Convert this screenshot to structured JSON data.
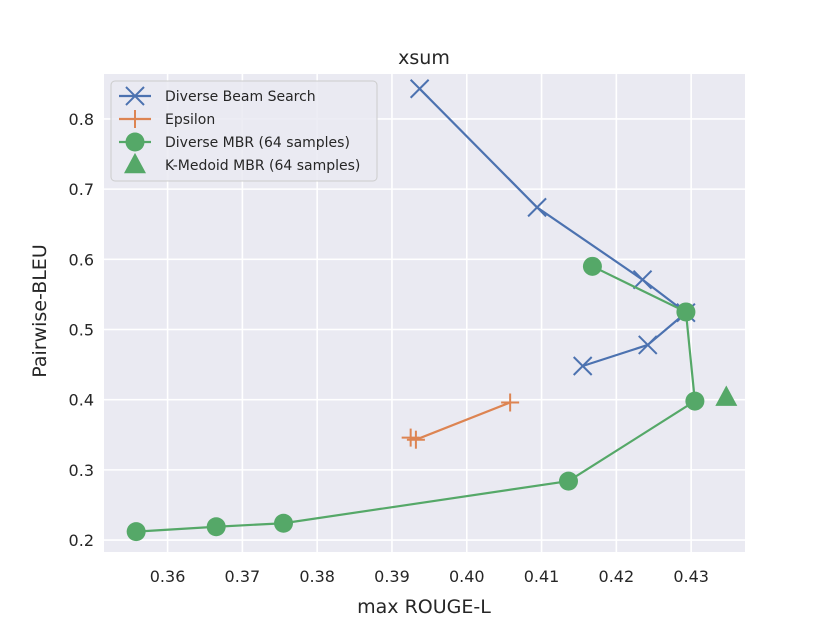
{
  "chart_data": {
    "type": "line",
    "title": "xsum",
    "xlabel": "max ROUGE-L",
    "ylabel": "Pairwise-BLEU",
    "xlim": [
      0.3515,
      0.4372
    ],
    "ylim": [
      0.183,
      0.864
    ],
    "xticks": [
      0.36,
      0.37,
      0.38,
      0.39,
      0.4,
      0.41,
      0.42,
      0.43
    ],
    "xtick_labels": [
      "0.36",
      "0.37",
      "0.38",
      "0.39",
      "0.40",
      "0.41",
      "0.42",
      "0.43"
    ],
    "yticks": [
      0.2,
      0.3,
      0.4,
      0.5,
      0.6,
      0.7,
      0.8
    ],
    "ytick_labels": [
      "0.2",
      "0.3",
      "0.4",
      "0.5",
      "0.6",
      "0.7",
      "0.8"
    ],
    "grid": true,
    "legend_position": "top-left",
    "series": [
      {
        "name": "Diverse Beam Search",
        "color": "#4c72b0",
        "marker": "x",
        "points": [
          [
            0.3937,
            0.843
          ],
          [
            0.4094,
            0.674
          ],
          [
            0.4235,
            0.571
          ],
          [
            0.4293,
            0.524
          ],
          [
            0.4242,
            0.478
          ],
          [
            0.4155,
            0.448
          ]
        ]
      },
      {
        "name": "Epsilon",
        "color": "#dd8452",
        "marker": "plus",
        "points": [
          [
            0.3925,
            0.346
          ],
          [
            0.3932,
            0.343
          ],
          [
            0.4058,
            0.396
          ]
        ]
      },
      {
        "name": "Diverse MBR (64 samples)",
        "color": "#55a868",
        "marker": "circle",
        "points": [
          [
            0.4168,
            0.59
          ],
          [
            0.4293,
            0.525
          ],
          [
            0.4305,
            0.398
          ],
          [
            0.4136,
            0.284
          ],
          [
            0.3755,
            0.224
          ],
          [
            0.3665,
            0.219
          ],
          [
            0.3558,
            0.212
          ]
        ]
      },
      {
        "name": "K-Medoid MBR (64 samples)",
        "color": "#55a868",
        "marker": "triangle",
        "points": [
          [
            0.4347,
            0.403
          ]
        ]
      }
    ]
  }
}
